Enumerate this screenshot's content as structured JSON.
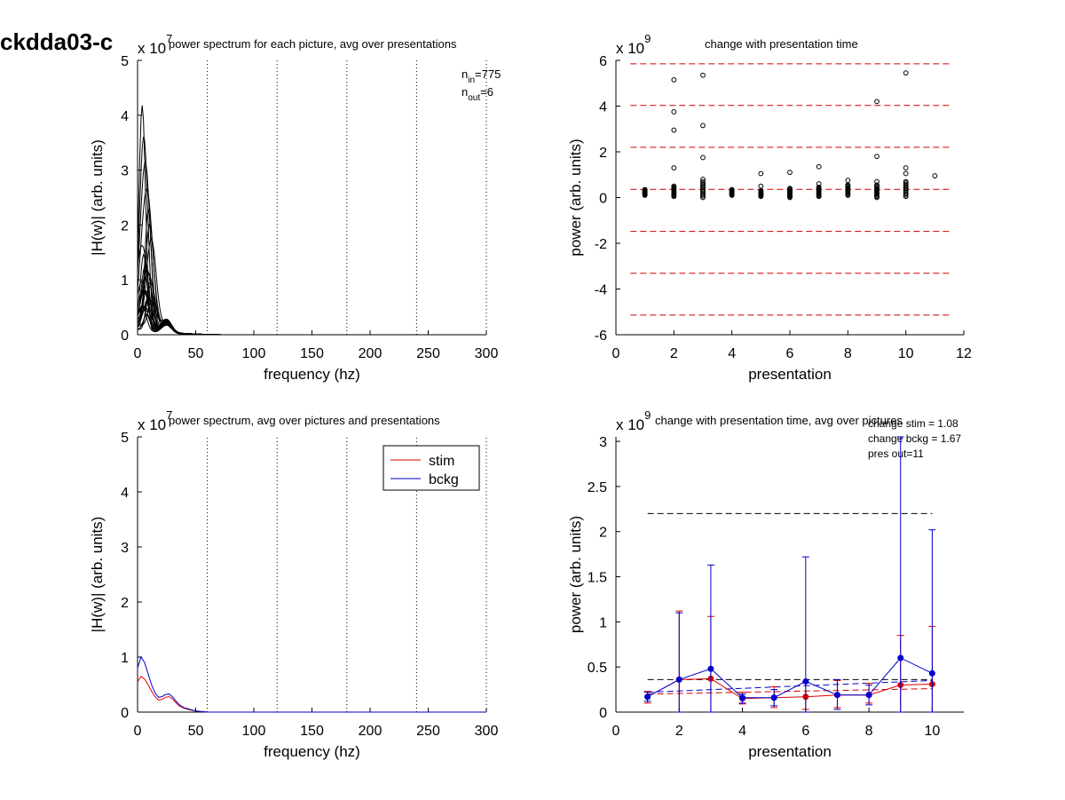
{
  "figure": {
    "label": "ckdda03-c"
  },
  "chart_data": [
    {
      "id": "p1",
      "type": "line",
      "title": "power spectrum for each picture, avg over presentations",
      "xlabel": "frequency (hz)",
      "ylabel": "|H(w)| (arb. units)",
      "exponent_base": "x 10",
      "exponent": "7",
      "xlim": [
        0,
        300
      ],
      "ylim": [
        0,
        5
      ],
      "xticks": [
        "0",
        "50",
        "100",
        "150",
        "200",
        "250",
        "300"
      ],
      "yticks": [
        "0",
        "1",
        "2",
        "3",
        "4",
        "5"
      ],
      "vlines_dotted": [
        60,
        120,
        180,
        240,
        300
      ],
      "annotation": {
        "n_in_sub": "in",
        "n_in_val": "=775",
        "n_out_sub": "out",
        "n_out_val": "=6",
        "n": "n"
      },
      "spectrum_peaks": [
        4.1,
        3.5,
        3.0,
        2.6,
        2.2,
        1.9,
        1.7,
        1.5,
        1.3,
        1.2,
        1.1,
        1.0,
        0.9,
        0.85,
        0.8,
        0.75,
        0.7,
        0.65,
        0.6,
        0.55,
        0.5,
        0.45,
        0.4,
        0.35,
        0.3
      ]
    },
    {
      "id": "p2",
      "type": "scatter",
      "title": "change with presentation time",
      "xlabel": "presentation",
      "ylabel": "power (arb. units)",
      "exponent_base": "x 10",
      "exponent": "9",
      "xlim": [
        0,
        12
      ],
      "ylim": [
        -6,
        6
      ],
      "xticks": [
        "0",
        "2",
        "4",
        "6",
        "8",
        "10",
        "12"
      ],
      "yticks": [
        "-6",
        "-4",
        "-2",
        "0",
        "2",
        "4",
        "6"
      ],
      "hlines_dashed_red": [
        5.85,
        4.03,
        2.2,
        0.36,
        -1.48,
        -3.31,
        -5.14
      ],
      "outlier_points": [
        [
          2,
          5.15
        ],
        [
          2,
          3.75
        ],
        [
          2,
          2.95
        ],
        [
          2,
          1.3
        ],
        [
          3,
          5.35
        ],
        [
          3,
          3.15
        ],
        [
          3,
          1.75
        ],
        [
          5,
          1.05
        ],
        [
          6,
          1.1
        ],
        [
          7,
          1.35
        ],
        [
          9,
          4.2
        ],
        [
          9,
          1.8
        ],
        [
          10,
          5.45
        ],
        [
          10,
          1.3
        ],
        [
          10,
          1.05
        ],
        [
          11,
          0.95
        ],
        [
          5,
          0.5
        ],
        [
          7,
          0.6
        ],
        [
          8,
          0.75
        ],
        [
          9,
          0.7
        ],
        [
          2,
          0.5
        ],
        [
          3,
          0.8
        ]
      ],
      "cluster_ranges": [
        [
          1,
          0.1,
          0.35
        ],
        [
          2,
          0.05,
          0.45
        ],
        [
          3,
          0.0,
          0.7
        ],
        [
          4,
          0.1,
          0.35
        ],
        [
          5,
          0.05,
          0.3
        ],
        [
          6,
          0.0,
          0.4
        ],
        [
          7,
          0.05,
          0.45
        ],
        [
          8,
          0.1,
          0.55
        ],
        [
          9,
          0.0,
          0.55
        ],
        [
          10,
          0.05,
          0.7
        ]
      ]
    },
    {
      "id": "p3",
      "type": "line",
      "title": "power spectrum, avg over pictures and presentations",
      "xlabel": "frequency (hz)",
      "ylabel": "|H(w)| (arb. units)",
      "exponent_base": "x 10",
      "exponent": "7",
      "xlim": [
        0,
        300
      ],
      "ylim": [
        0,
        5
      ],
      "xticks": [
        "0",
        "50",
        "100",
        "150",
        "200",
        "250",
        "300"
      ],
      "yticks": [
        "0",
        "1",
        "2",
        "3",
        "4",
        "5"
      ],
      "vlines_dotted": [
        60,
        120,
        180,
        240,
        300
      ],
      "legend": {
        "placement": "top-right"
      },
      "series": [
        {
          "name": "stim",
          "color": "#e00000",
          "x": [
            0,
            3,
            6,
            9,
            12,
            15,
            18,
            21,
            24,
            27,
            30,
            33,
            36,
            40,
            45,
            50,
            55,
            60,
            300
          ],
          "y": [
            0.55,
            0.65,
            0.6,
            0.5,
            0.38,
            0.28,
            0.22,
            0.23,
            0.27,
            0.28,
            0.24,
            0.17,
            0.11,
            0.07,
            0.04,
            0.02,
            0.01,
            0.0,
            0.0
          ]
        },
        {
          "name": "bckg",
          "color": "#0000cc",
          "x": [
            0,
            3,
            6,
            9,
            12,
            15,
            18,
            21,
            24,
            27,
            30,
            33,
            36,
            40,
            45,
            50,
            55,
            60,
            300
          ],
          "y": [
            0.8,
            1.0,
            0.9,
            0.7,
            0.5,
            0.35,
            0.27,
            0.28,
            0.32,
            0.33,
            0.28,
            0.2,
            0.13,
            0.08,
            0.05,
            0.02,
            0.01,
            0.0,
            0.0
          ]
        }
      ]
    },
    {
      "id": "p4",
      "type": "line",
      "title": "change with presentation time, avg over pictures",
      "xlabel": "presentation",
      "ylabel": "power (arb. units)",
      "exponent_base": "x 10",
      "exponent": "9",
      "xlim": [
        0,
        11
      ],
      "ylim": [
        0,
        3.05
      ],
      "xticks": [
        "0",
        "2",
        "4",
        "6",
        "8",
        "10"
      ],
      "yticks": [
        "0",
        "0.5",
        "1",
        "1.5",
        "2",
        "2.5",
        "3"
      ],
      "annotations": [
        "change stim = 1.08",
        "change bckg = 1.67",
        "pres out=11"
      ],
      "hline_black_high": 2.2,
      "hline_black_low": 0.36,
      "series": [
        {
          "name": "",
          "color": "#e00000",
          "x": [
            1,
            2,
            3,
            4,
            5,
            6,
            7,
            8,
            9,
            10
          ],
          "y": [
            0.17,
            0.36,
            0.37,
            0.15,
            0.16,
            0.17,
            0.19,
            0.19,
            0.3,
            0.31
          ],
          "err_lo": [
            0.1,
            0.0,
            0.0,
            0.09,
            0.05,
            0.03,
            0.05,
            0.1,
            0.0,
            0.0
          ],
          "err_hi": [
            0.23,
            1.12,
            1.06,
            0.22,
            0.28,
            0.33,
            0.35,
            0.32,
            0.85,
            0.95
          ]
        },
        {
          "name": "",
          "color": "#0000cc",
          "x": [
            1,
            2,
            3,
            4,
            5,
            6,
            7,
            8,
            9,
            10
          ],
          "y": [
            0.17,
            0.36,
            0.48,
            0.16,
            0.16,
            0.34,
            0.19,
            0.19,
            0.6,
            0.43
          ],
          "err_lo": [
            0.12,
            0.0,
            0.0,
            0.1,
            0.07,
            0.0,
            0.03,
            0.08,
            0.0,
            0.0
          ],
          "err_hi": [
            0.22,
            1.1,
            1.63,
            0.2,
            0.25,
            1.72,
            0.36,
            0.3,
            3.05,
            2.02
          ]
        }
      ],
      "trend_stim": [
        [
          1,
          0.2
        ],
        [
          10,
          0.26
        ]
      ],
      "trend_bckg": [
        [
          1,
          0.22
        ],
        [
          10,
          0.35
        ]
      ]
    }
  ]
}
